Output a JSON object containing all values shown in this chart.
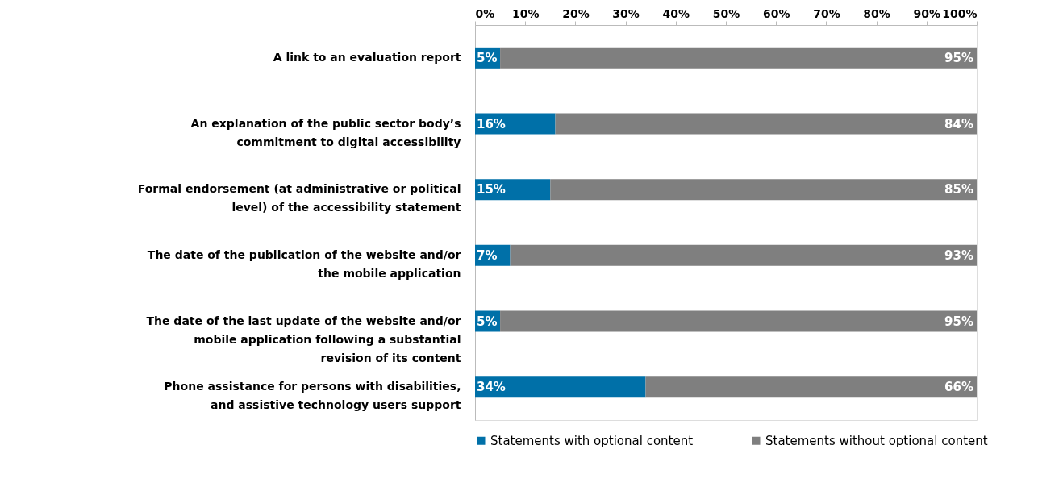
{
  "chart_data": {
    "type": "bar",
    "orientation": "horizontal",
    "stacked": true,
    "categories": [
      "A link to an evaluation report",
      "An explanation of the public sector body’s commitment to digital accessibility",
      "Formal endorsement (at administrative or political level) of the accessibility statement",
      "The date of the publication of the website and/or the mobile application",
      "The date of the last update of the website and/or mobile application following a substantial revision of its content",
      "Phone assistance for persons with disabilities, and assistive technology users support"
    ],
    "series": [
      {
        "name": "Statements with optional content",
        "color": "#0070a8",
        "values": [
          5,
          16,
          15,
          7,
          5,
          34
        ],
        "value_labels": [
          "5%",
          "16%",
          "15%",
          "7%",
          "5%",
          "34%"
        ]
      },
      {
        "name": "Statements without optional content",
        "color": "#7f7f7f",
        "values": [
          95,
          84,
          85,
          93,
          95,
          66
        ],
        "value_labels": [
          "95%",
          "84%",
          "85%",
          "93%",
          "95%",
          "66%"
        ]
      }
    ],
    "xlim": [
      0,
      100
    ],
    "xticks": [
      {
        "value": 0,
        "label": "0%"
      },
      {
        "value": 10,
        "label": "10%"
      },
      {
        "value": 20,
        "label": "20%"
      },
      {
        "value": 30,
        "label": "30%"
      },
      {
        "value": 40,
        "label": "40%"
      },
      {
        "value": 50,
        "label": "50%"
      },
      {
        "value": 60,
        "label": "60%"
      },
      {
        "value": 70,
        "label": "70%"
      },
      {
        "value": 80,
        "label": "80%"
      },
      {
        "value": 90,
        "label": "90%"
      },
      {
        "value": 100,
        "label": "100%"
      }
    ],
    "grid": false,
    "legend": "bottom"
  }
}
